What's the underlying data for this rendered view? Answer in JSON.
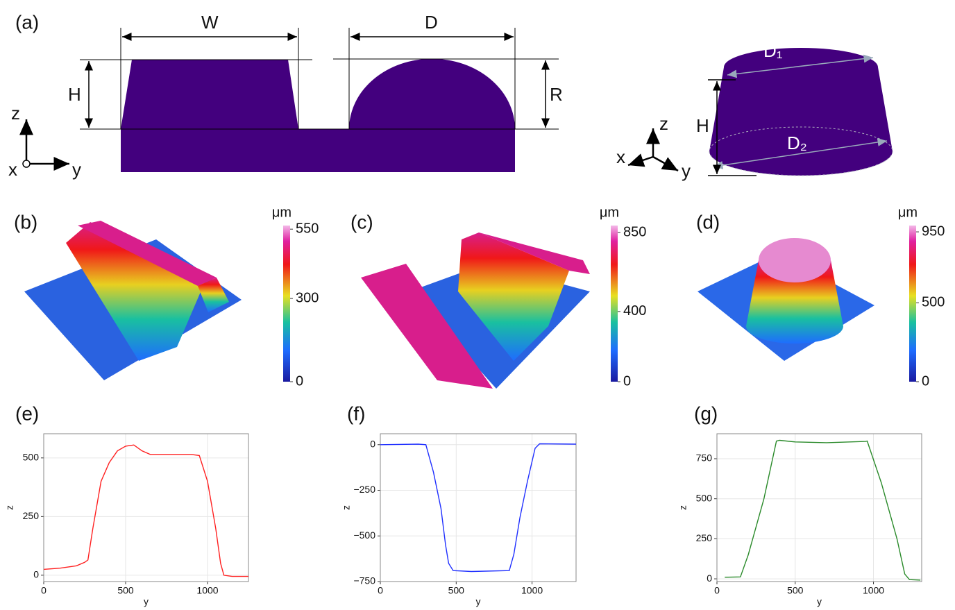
{
  "panel_a": {
    "label": "(a)",
    "cross_section": {
      "width": "W",
      "diameter": "D",
      "height": "H",
      "radius": "R",
      "axis_z": "z",
      "axis_x": "x",
      "axis_y": "y"
    },
    "frustum": {
      "top_diameter": "D₁",
      "bottom_diameter": "D₂",
      "height": "H",
      "axis_z": "z",
      "axis_x": "x",
      "axis_y": "y"
    }
  },
  "surfaces": [
    {
      "label": "(b)",
      "unit": "μm",
      "lim": [
        0,
        563
      ],
      "ticks": [
        0,
        300,
        550
      ]
    },
    {
      "label": "(c)",
      "unit": "μm",
      "lim": [
        0,
        890
      ],
      "ticks": [
        0,
        400,
        850
      ]
    },
    {
      "label": "(d)",
      "unit": "μm",
      "lim": [
        0,
        990
      ],
      "ticks": [
        0,
        500,
        950
      ]
    }
  ],
  "chart_data": [
    {
      "type": "line",
      "title": "(e)",
      "x_label": "y",
      "y_label": "z",
      "color": "#ff2020",
      "xlim": [
        0,
        1250
      ],
      "ylim": [
        -27,
        603
      ],
      "xticks": [
        0,
        500,
        1000
      ],
      "yticks": [
        0,
        250,
        500
      ],
      "grid": true,
      "x": [
        0,
        100,
        200,
        250,
        270,
        300,
        350,
        400,
        450,
        500,
        550,
        600,
        650,
        700,
        800,
        900,
        950,
        1000,
        1050,
        1080,
        1100,
        1150,
        1250
      ],
      "values": [
        25,
        30,
        40,
        55,
        65,
        200,
        400,
        480,
        530,
        550,
        555,
        530,
        515,
        515,
        515,
        515,
        510,
        400,
        200,
        50,
        0,
        -5,
        -5
      ]
    },
    {
      "type": "line",
      "title": "(f)",
      "x_label": "y",
      "y_label": "z",
      "color": "#2030ff",
      "xlim": [
        0,
        1290
      ],
      "ylim": [
        -750,
        60
      ],
      "xticks": [
        0,
        500,
        1000
      ],
      "yticks": [
        0,
        {
          "value": -250,
          "label": "−250"
        },
        {
          "value": -500,
          "label": "−500"
        },
        {
          "value": -750,
          "label": "−750"
        }
      ],
      "grid": true,
      "x": [
        0,
        250,
        300,
        350,
        400,
        430,
        450,
        480,
        600,
        850,
        880,
        920,
        970,
        1020,
        1050,
        1290
      ],
      "values": [
        0,
        3,
        0,
        -150,
        -350,
        -550,
        -650,
        -690,
        -695,
        -690,
        -600,
        -400,
        -200,
        -20,
        5,
        3
      ]
    },
    {
      "type": "line",
      "title": "(g)",
      "x_label": "y",
      "y_label": "z",
      "color": "#2a8a2a",
      "xlim": [
        0,
        1308
      ],
      "ylim": [
        -17,
        906
      ],
      "xticks": [
        0,
        500,
        1000
      ],
      "yticks": [
        0,
        250,
        500,
        750
      ],
      "grid": true,
      "x": [
        50,
        150,
        200,
        300,
        380,
        400,
        500,
        700,
        950,
        960,
        1050,
        1150,
        1200,
        1230,
        1300
      ],
      "values": [
        10,
        12,
        150,
        500,
        860,
        865,
        855,
        850,
        858,
        860,
        600,
        250,
        30,
        -5,
        -8
      ]
    }
  ]
}
